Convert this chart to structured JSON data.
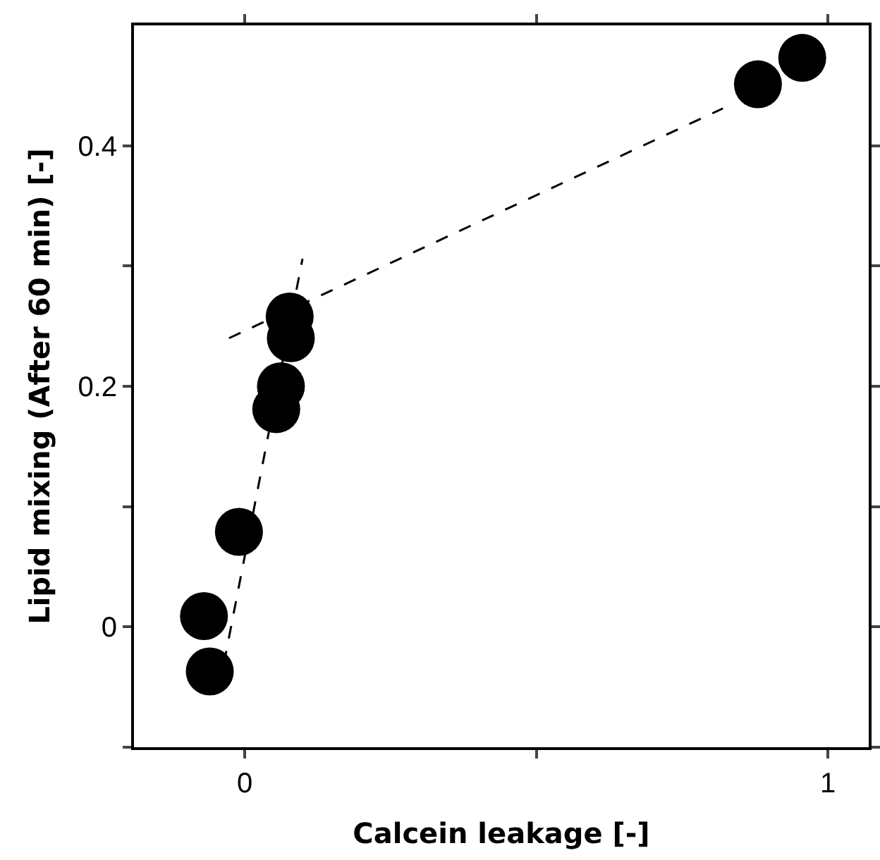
{
  "chart_data": {
    "type": "scatter",
    "xlabel": "Calcein leakage [-]",
    "ylabel": "Lipid mixing (After 60 min) [-]",
    "xlim": [
      -0.19,
      1.07
    ],
    "ylim": [
      -0.1,
      0.5
    ],
    "xticks": [
      0,
      {
        "value": 0.5,
        "label": null
      },
      1
    ],
    "yticks": [
      {
        "value": -0.1,
        "label": null
      },
      0,
      {
        "value": 0.1,
        "label": null
      },
      0.2,
      {
        "value": 0.3,
        "label": null
      },
      0.4
    ],
    "grid": false,
    "marker": "circle",
    "series": [
      {
        "color": "#000000",
        "x": [
          -0.07,
          -0.06,
          -0.01,
          0.054,
          0.062,
          0.079,
          0.077,
          0.88,
          0.956
        ],
        "values": [
          0.009,
          -0.037,
          0.079,
          0.181,
          0.2,
          0.24,
          0.258,
          0.451,
          0.473
        ]
      },
      {
        "type": "line",
        "color": "#000000",
        "line_style": "dashed",
        "marker": "none",
        "x": [
          -0.044,
          0.099
        ],
        "values": [
          -0.051,
          0.306
        ]
      },
      {
        "type": "line",
        "color": "#000000",
        "line_style": "dashed",
        "marker": "none",
        "x": [
          -0.027,
          0.82
        ],
        "values": [
          0.24,
          0.431
        ]
      }
    ]
  }
}
